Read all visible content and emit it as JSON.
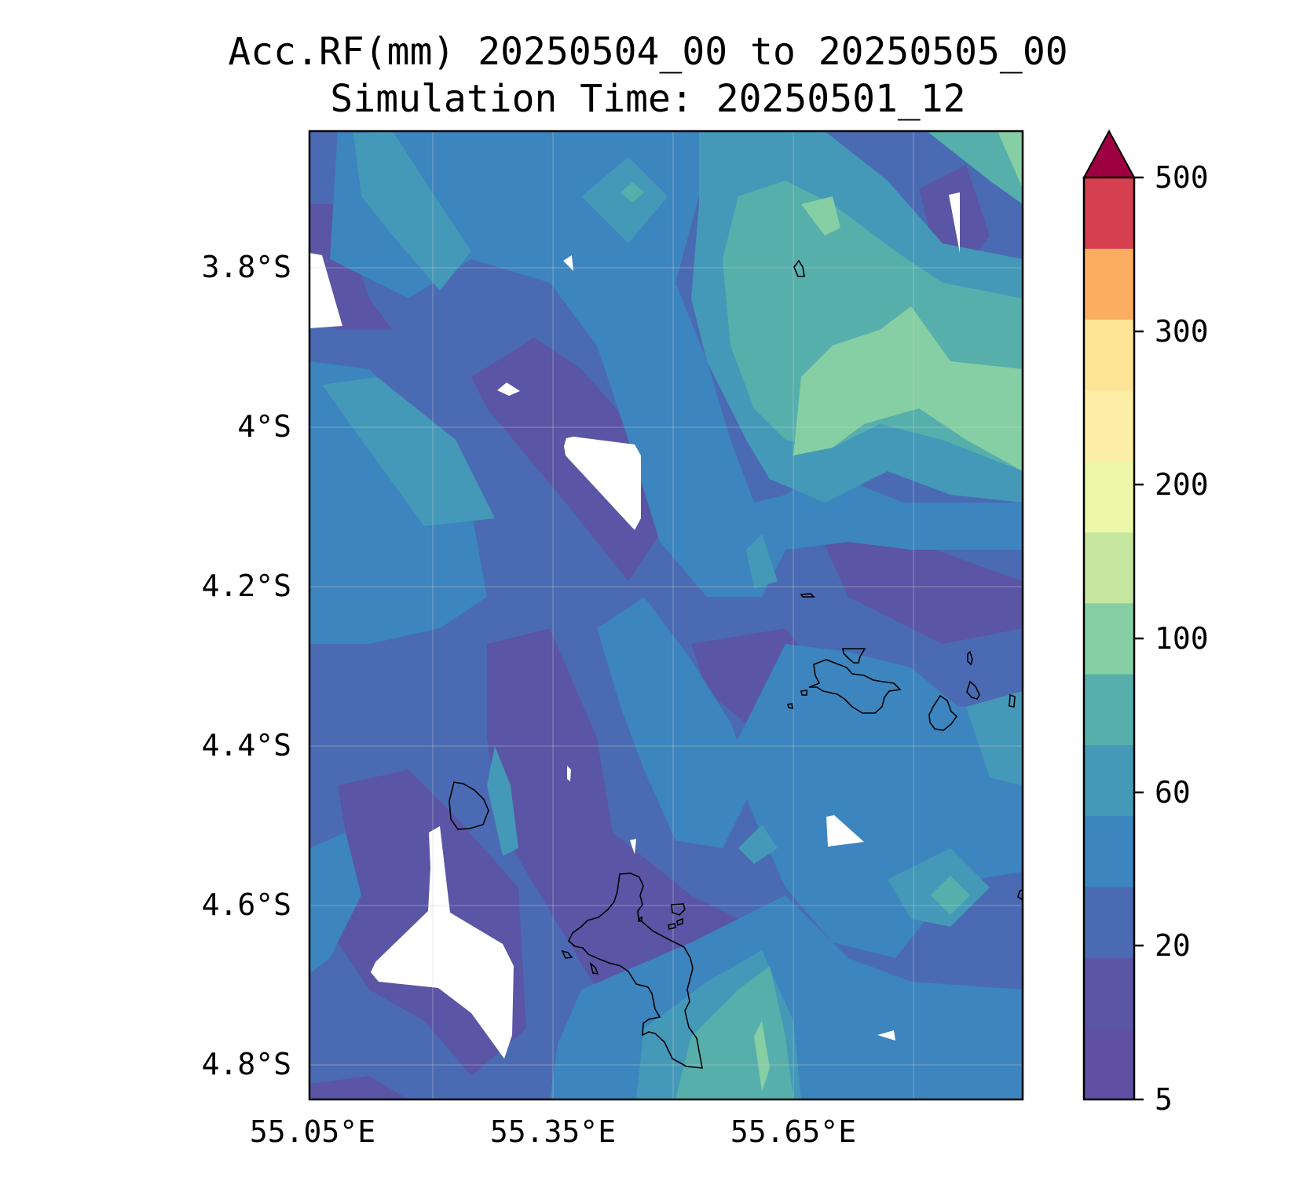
{
  "title": {
    "line1": "Acc.RF(mm) 20250504_00 to 20250505_00",
    "line2": "Simulation Time: 20250501_12"
  },
  "axes": {
    "y_ticks": [
      "3.8°S",
      "4°S",
      "4.2°S",
      "4.4°S",
      "4.6°S",
      "4.8°S"
    ],
    "x_ticks": [
      "55.05°E",
      "55.35°E",
      "55.65°E"
    ]
  },
  "colorbar": {
    "labels": [
      "5",
      "20",
      "60",
      "100",
      "200",
      "300",
      "500"
    ],
    "band_colors": [
      "#6050a4",
      "#5a55a5",
      "#4a6bb3",
      "#3c85be",
      "#4499b8",
      "#57afac",
      "#86cea3",
      "#c4e69f",
      "#edf7a8",
      "#fdeea5",
      "#fee497",
      "#fbae5f",
      "#d63f4f"
    ],
    "extend_color": "#9e0142"
  },
  "colors": {
    "land_outline": "#000000",
    "missing": "#ffffff"
  }
}
